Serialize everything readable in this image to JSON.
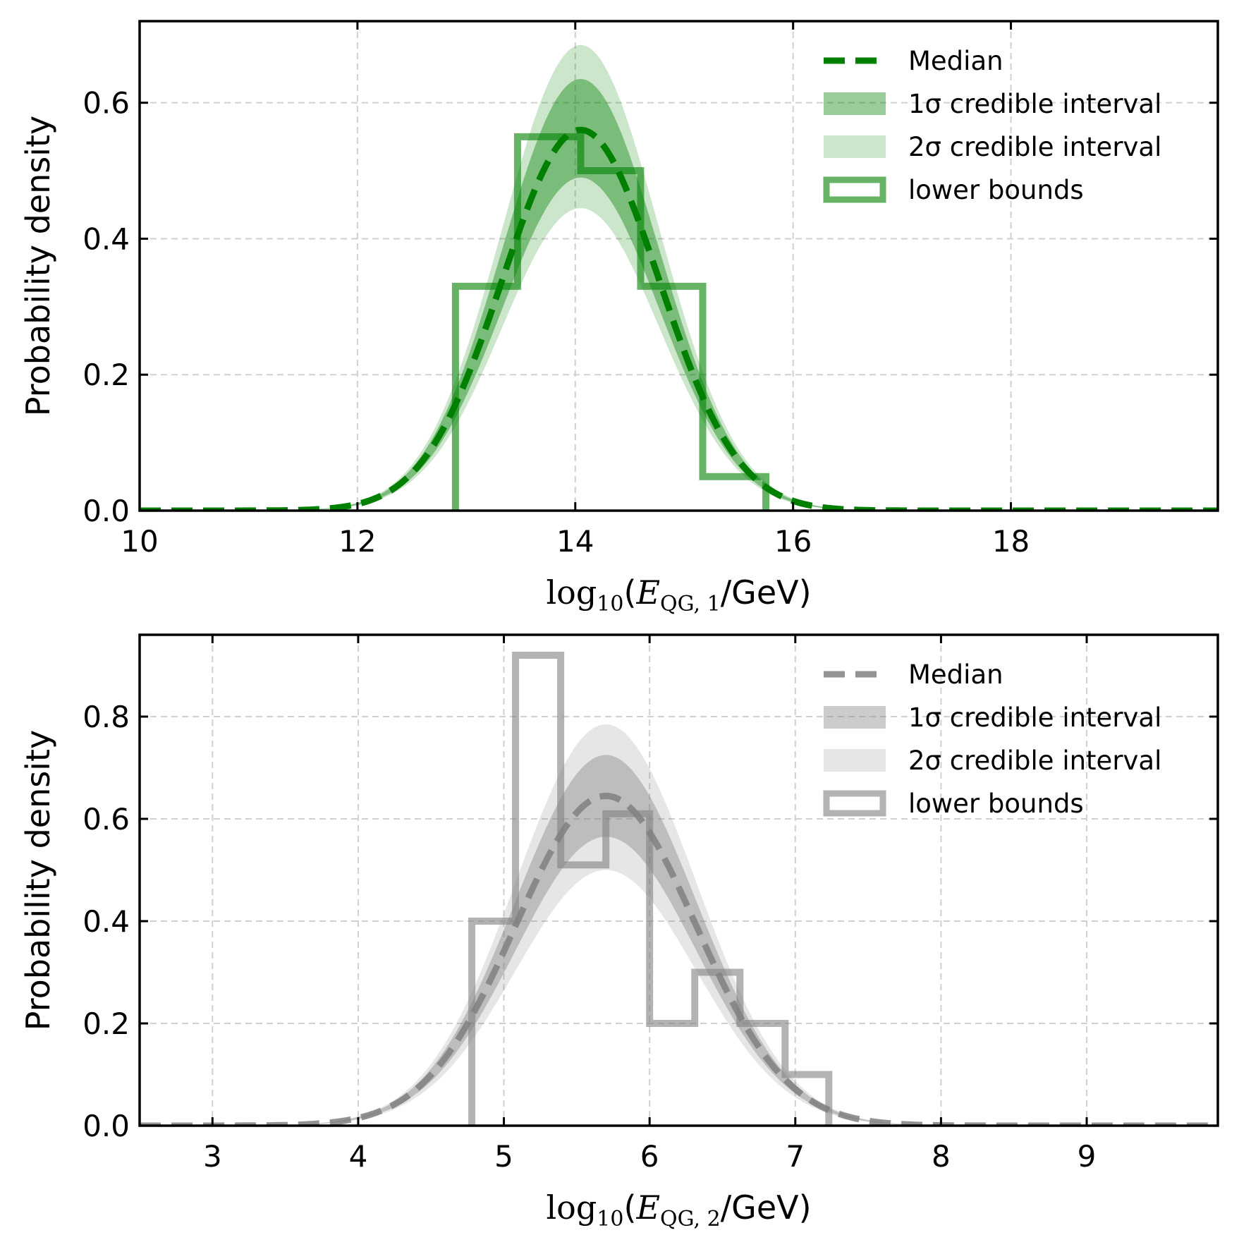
{
  "chart_data": [
    {
      "type": "line",
      "color": "#008000",
      "xlabel": {
        "prefix": "log",
        "sub": "10",
        "open": "(",
        "var": "E",
        "var_sub": "QG, 1",
        "suffix": "/GeV)"
      },
      "ylabel": "Probability density",
      "xlim": [
        10,
        19.9
      ],
      "ylim": [
        0,
        0.72
      ],
      "xticks": [
        10,
        12,
        14,
        16,
        18
      ],
      "xtick_labels": [
        "10",
        "12",
        "14",
        "16",
        "18"
      ],
      "yticks": [
        0.0,
        0.2,
        0.4,
        0.6
      ],
      "ytick_labels": [
        "0.0",
        "0.2",
        "0.4",
        "0.6"
      ],
      "grid": true,
      "legend_position": "top-right",
      "legend": [
        "Median",
        "1σ credible interval",
        "2σ credible interval",
        "lower bounds"
      ],
      "median": {
        "mean": 14.05,
        "sigma": 0.72,
        "peak": 0.56
      },
      "band_1sigma": {
        "upper_peak": 0.635,
        "lower_peak": 0.49
      },
      "band_2sigma": {
        "upper_peak": 0.685,
        "lower_peak": 0.445
      },
      "histogram": {
        "bin_edges": [
          12.9,
          13.47,
          14.05,
          14.6,
          15.17,
          15.75
        ],
        "values": [
          0.33,
          0.55,
          0.5,
          0.33,
          0.05
        ]
      }
    },
    {
      "type": "line",
      "color": "#808080",
      "xlabel": {
        "prefix": "log",
        "sub": "10",
        "open": "(",
        "var": "E",
        "var_sub": "QG, 2",
        "suffix": "/GeV)"
      },
      "ylabel": "Probability density",
      "xlim": [
        2.5,
        9.9
      ],
      "ylim": [
        0,
        0.96
      ],
      "xticks": [
        3,
        4,
        5,
        6,
        7,
        8,
        9
      ],
      "xtick_labels": [
        "3",
        "4",
        "5",
        "6",
        "7",
        "8",
        "9"
      ],
      "yticks": [
        0.0,
        0.2,
        0.4,
        0.6,
        0.8
      ],
      "ytick_labels": [
        "0.0",
        "0.2",
        "0.4",
        "0.6",
        "0.8"
      ],
      "grid": true,
      "legend_position": "top-right",
      "legend": [
        "Median",
        "1σ credible interval",
        "2σ credible interval",
        "lower bounds"
      ],
      "median": {
        "mean": 5.7,
        "sigma": 0.62,
        "peak": 0.645
      },
      "band_1sigma": {
        "upper_peak": 0.725,
        "lower_peak": 0.565
      },
      "band_2sigma": {
        "upper_peak": 0.785,
        "lower_peak": 0.5
      },
      "histogram": {
        "bin_edges": [
          4.78,
          5.08,
          5.39,
          5.7,
          6.0,
          6.31,
          6.62,
          6.93,
          7.23
        ],
        "values": [
          0.4,
          0.92,
          0.51,
          0.61,
          0.2,
          0.3,
          0.2,
          0.1
        ]
      }
    }
  ]
}
